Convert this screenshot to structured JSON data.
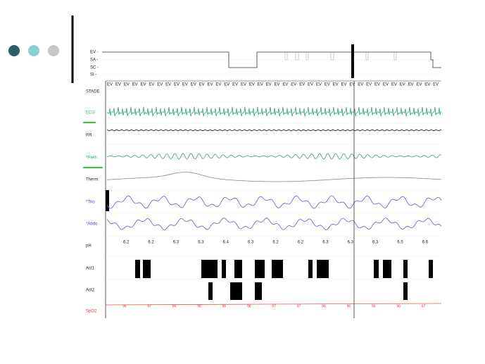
{
  "hypnogram": {
    "labels": [
      "EV -",
      "SA -",
      "SC -",
      "SI -"
    ]
  },
  "channels": [
    "STADE",
    "ECG",
    "RR",
    "*Pleth",
    "Therm",
    "*Tho",
    "*Abdo",
    "pH",
    "Act1",
    "Act2",
    "SpO2"
  ],
  "stade": [
    "EV",
    "EV",
    "EV",
    "EV",
    "EV",
    "EV",
    "EV",
    "EV",
    "EV",
    "EV",
    "EV",
    "EV",
    "EV",
    "EV",
    "EV",
    "EV",
    "EV",
    "EV",
    "EV",
    "EV",
    "EV",
    "EV",
    "EV",
    "EV",
    "EV",
    "EV",
    "EV",
    "EV",
    "EV",
    "EV",
    "EV",
    "EV",
    "EV",
    "EV",
    "EV",
    "EV",
    "EV",
    "EV",
    "EV",
    "EV"
  ],
  "ph": [
    6.2,
    6.2,
    6.3,
    6.3,
    6.4,
    6.3,
    6.2,
    6.2,
    6.3,
    6.3,
    6.3,
    6.5,
    6.6
  ],
  "spo2": [
    96,
    97,
    96,
    96,
    96,
    96,
    97,
    97,
    96,
    96,
    96,
    96,
    97
  ]
}
